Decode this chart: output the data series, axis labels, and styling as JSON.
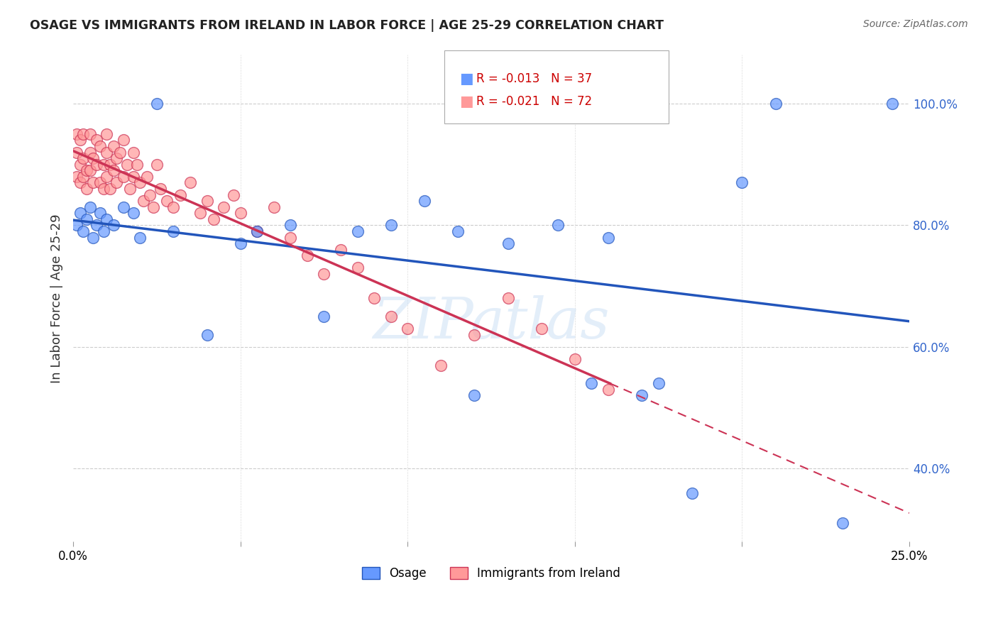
{
  "title": "OSAGE VS IMMIGRANTS FROM IRELAND IN LABOR FORCE | AGE 25-29 CORRELATION CHART",
  "source": "Source: ZipAtlas.com",
  "ylabel_color": "#3366cc",
  "ylabel_axis_label": "In Labor Force | Age 25-29",
  "xlim": [
    0.0,
    0.25
  ],
  "ylim": [
    0.28,
    1.08
  ],
  "legend_r_blue": "-0.013",
  "legend_n_blue": "37",
  "legend_r_pink": "-0.021",
  "legend_n_pink": "72",
  "blue_color": "#6699ff",
  "pink_color": "#ff9999",
  "blue_line_color": "#2255bb",
  "pink_line_color": "#cc3355",
  "watermark_text": "ZIPatlas",
  "osage_x": [
    0.001,
    0.002,
    0.003,
    0.004,
    0.005,
    0.006,
    0.007,
    0.008,
    0.009,
    0.01,
    0.012,
    0.015,
    0.018,
    0.02,
    0.025,
    0.03,
    0.04,
    0.05,
    0.055,
    0.065,
    0.075,
    0.085,
    0.095,
    0.105,
    0.115,
    0.12,
    0.13,
    0.145,
    0.155,
    0.16,
    0.17,
    0.175,
    0.185,
    0.2,
    0.21,
    0.23,
    0.245
  ],
  "osage_y": [
    0.8,
    0.82,
    0.79,
    0.81,
    0.83,
    0.78,
    0.8,
    0.82,
    0.79,
    0.81,
    0.8,
    0.83,
    0.82,
    0.78,
    1.0,
    0.79,
    0.62,
    0.77,
    0.79,
    0.8,
    0.65,
    0.79,
    0.8,
    0.84,
    0.79,
    0.52,
    0.77,
    0.8,
    0.54,
    0.78,
    0.52,
    0.54,
    0.36,
    0.87,
    1.0,
    0.31,
    1.0
  ],
  "ireland_x": [
    0.001,
    0.001,
    0.001,
    0.002,
    0.002,
    0.002,
    0.003,
    0.003,
    0.003,
    0.004,
    0.004,
    0.005,
    0.005,
    0.005,
    0.006,
    0.006,
    0.007,
    0.007,
    0.008,
    0.008,
    0.009,
    0.009,
    0.01,
    0.01,
    0.01,
    0.011,
    0.011,
    0.012,
    0.012,
    0.013,
    0.013,
    0.014,
    0.015,
    0.015,
    0.016,
    0.017,
    0.018,
    0.018,
    0.019,
    0.02,
    0.021,
    0.022,
    0.023,
    0.024,
    0.025,
    0.026,
    0.028,
    0.03,
    0.032,
    0.035,
    0.038,
    0.04,
    0.042,
    0.045,
    0.048,
    0.05,
    0.055,
    0.06,
    0.065,
    0.07,
    0.075,
    0.08,
    0.085,
    0.09,
    0.095,
    0.1,
    0.11,
    0.12,
    0.13,
    0.14,
    0.15,
    0.16
  ],
  "ireland_y": [
    0.92,
    0.88,
    0.95,
    0.9,
    0.87,
    0.94,
    0.91,
    0.88,
    0.95,
    0.89,
    0.86,
    0.92,
    0.89,
    0.95,
    0.91,
    0.87,
    0.94,
    0.9,
    0.87,
    0.93,
    0.9,
    0.86,
    0.92,
    0.88,
    0.95,
    0.9,
    0.86,
    0.93,
    0.89,
    0.91,
    0.87,
    0.92,
    0.88,
    0.94,
    0.9,
    0.86,
    0.92,
    0.88,
    0.9,
    0.87,
    0.84,
    0.88,
    0.85,
    0.83,
    0.9,
    0.86,
    0.84,
    0.83,
    0.85,
    0.87,
    0.82,
    0.84,
    0.81,
    0.83,
    0.85,
    0.82,
    0.79,
    0.83,
    0.78,
    0.75,
    0.72,
    0.76,
    0.73,
    0.68,
    0.65,
    0.63,
    0.57,
    0.62,
    0.68,
    0.63,
    0.58,
    0.53
  ]
}
